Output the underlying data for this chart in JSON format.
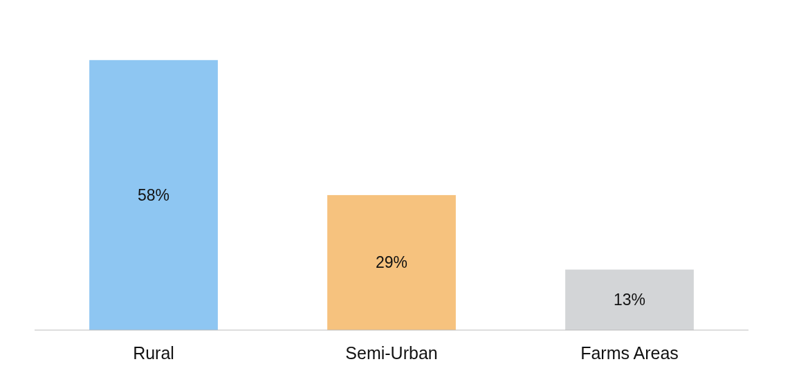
{
  "chart_data": {
    "type": "bar",
    "categories": [
      "Rural",
      "Semi-Urban",
      "Farms Areas"
    ],
    "values": [
      58,
      29,
      13
    ],
    "colors": [
      "#8ec6f2",
      "#f6c27e",
      "#d3d5d7"
    ],
    "value_labels": [
      "58%",
      "29%",
      "13%"
    ]
  }
}
